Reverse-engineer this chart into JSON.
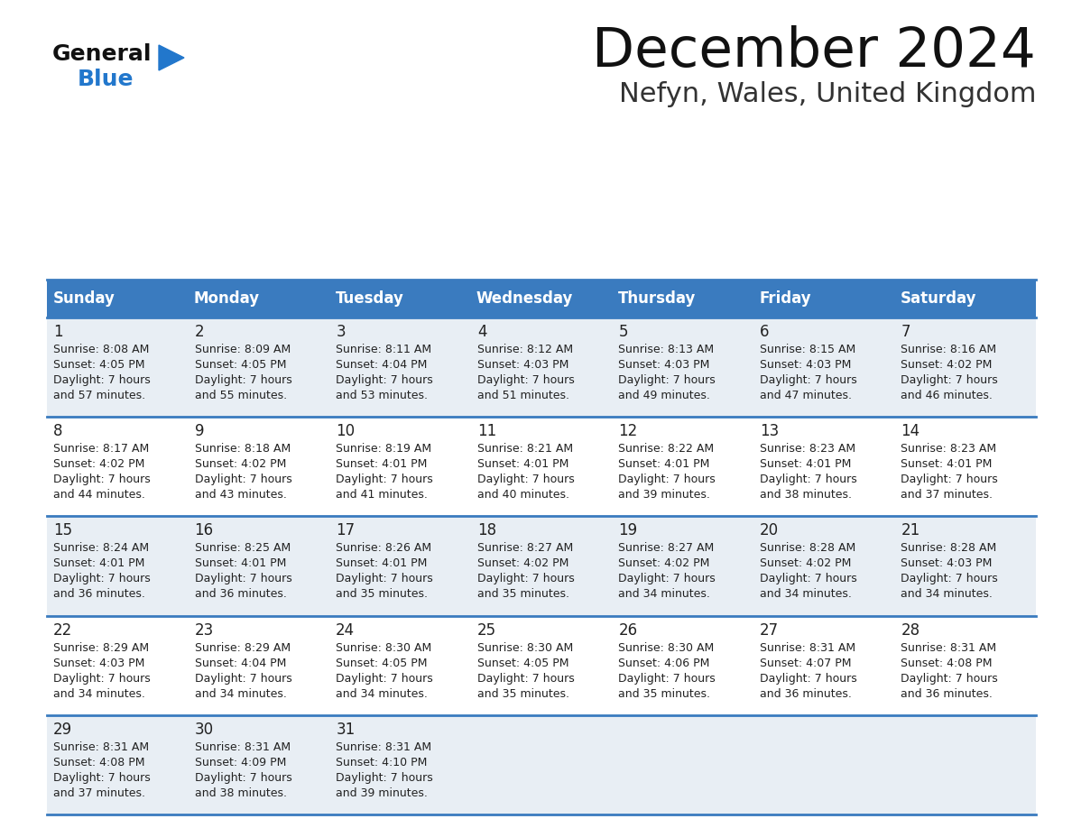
{
  "title": "December 2024",
  "subtitle": "Nefyn, Wales, United Kingdom",
  "header_color": "#3a7bbf",
  "header_text_color": "#ffffff",
  "cell_bg_light": "#e8eef4",
  "cell_bg_white": "#ffffff",
  "border_color": "#3a7bbf",
  "text_color": "#222222",
  "days_of_week": [
    "Sunday",
    "Monday",
    "Tuesday",
    "Wednesday",
    "Thursday",
    "Friday",
    "Saturday"
  ],
  "calendar_data": [
    [
      {
        "day": "1",
        "sunrise": "8:08 AM",
        "sunset": "4:05 PM",
        "daylight_h": "7 hours",
        "daylight_m": "and 57 minutes."
      },
      {
        "day": "2",
        "sunrise": "8:09 AM",
        "sunset": "4:05 PM",
        "daylight_h": "7 hours",
        "daylight_m": "and 55 minutes."
      },
      {
        "day": "3",
        "sunrise": "8:11 AM",
        "sunset": "4:04 PM",
        "daylight_h": "7 hours",
        "daylight_m": "and 53 minutes."
      },
      {
        "day": "4",
        "sunrise": "8:12 AM",
        "sunset": "4:03 PM",
        "daylight_h": "7 hours",
        "daylight_m": "and 51 minutes."
      },
      {
        "day": "5",
        "sunrise": "8:13 AM",
        "sunset": "4:03 PM",
        "daylight_h": "7 hours",
        "daylight_m": "and 49 minutes."
      },
      {
        "day": "6",
        "sunrise": "8:15 AM",
        "sunset": "4:03 PM",
        "daylight_h": "7 hours",
        "daylight_m": "and 47 minutes."
      },
      {
        "day": "7",
        "sunrise": "8:16 AM",
        "sunset": "4:02 PM",
        "daylight_h": "7 hours",
        "daylight_m": "and 46 minutes."
      }
    ],
    [
      {
        "day": "8",
        "sunrise": "8:17 AM",
        "sunset": "4:02 PM",
        "daylight_h": "7 hours",
        "daylight_m": "and 44 minutes."
      },
      {
        "day": "9",
        "sunrise": "8:18 AM",
        "sunset": "4:02 PM",
        "daylight_h": "7 hours",
        "daylight_m": "and 43 minutes."
      },
      {
        "day": "10",
        "sunrise": "8:19 AM",
        "sunset": "4:01 PM",
        "daylight_h": "7 hours",
        "daylight_m": "and 41 minutes."
      },
      {
        "day": "11",
        "sunrise": "8:21 AM",
        "sunset": "4:01 PM",
        "daylight_h": "7 hours",
        "daylight_m": "and 40 minutes."
      },
      {
        "day": "12",
        "sunrise": "8:22 AM",
        "sunset": "4:01 PM",
        "daylight_h": "7 hours",
        "daylight_m": "and 39 minutes."
      },
      {
        "day": "13",
        "sunrise": "8:23 AM",
        "sunset": "4:01 PM",
        "daylight_h": "7 hours",
        "daylight_m": "and 38 minutes."
      },
      {
        "day": "14",
        "sunrise": "8:23 AM",
        "sunset": "4:01 PM",
        "daylight_h": "7 hours",
        "daylight_m": "and 37 minutes."
      }
    ],
    [
      {
        "day": "15",
        "sunrise": "8:24 AM",
        "sunset": "4:01 PM",
        "daylight_h": "7 hours",
        "daylight_m": "and 36 minutes."
      },
      {
        "day": "16",
        "sunrise": "8:25 AM",
        "sunset": "4:01 PM",
        "daylight_h": "7 hours",
        "daylight_m": "and 36 minutes."
      },
      {
        "day": "17",
        "sunrise": "8:26 AM",
        "sunset": "4:01 PM",
        "daylight_h": "7 hours",
        "daylight_m": "and 35 minutes."
      },
      {
        "day": "18",
        "sunrise": "8:27 AM",
        "sunset": "4:02 PM",
        "daylight_h": "7 hours",
        "daylight_m": "and 35 minutes."
      },
      {
        "day": "19",
        "sunrise": "8:27 AM",
        "sunset": "4:02 PM",
        "daylight_h": "7 hours",
        "daylight_m": "and 34 minutes."
      },
      {
        "day": "20",
        "sunrise": "8:28 AM",
        "sunset": "4:02 PM",
        "daylight_h": "7 hours",
        "daylight_m": "and 34 minutes."
      },
      {
        "day": "21",
        "sunrise": "8:28 AM",
        "sunset": "4:03 PM",
        "daylight_h": "7 hours",
        "daylight_m": "and 34 minutes."
      }
    ],
    [
      {
        "day": "22",
        "sunrise": "8:29 AM",
        "sunset": "4:03 PM",
        "daylight_h": "7 hours",
        "daylight_m": "and 34 minutes."
      },
      {
        "day": "23",
        "sunrise": "8:29 AM",
        "sunset": "4:04 PM",
        "daylight_h": "7 hours",
        "daylight_m": "and 34 minutes."
      },
      {
        "day": "24",
        "sunrise": "8:30 AM",
        "sunset": "4:05 PM",
        "daylight_h": "7 hours",
        "daylight_m": "and 34 minutes."
      },
      {
        "day": "25",
        "sunrise": "8:30 AM",
        "sunset": "4:05 PM",
        "daylight_h": "7 hours",
        "daylight_m": "and 35 minutes."
      },
      {
        "day": "26",
        "sunrise": "8:30 AM",
        "sunset": "4:06 PM",
        "daylight_h": "7 hours",
        "daylight_m": "and 35 minutes."
      },
      {
        "day": "27",
        "sunrise": "8:31 AM",
        "sunset": "4:07 PM",
        "daylight_h": "7 hours",
        "daylight_m": "and 36 minutes."
      },
      {
        "day": "28",
        "sunrise": "8:31 AM",
        "sunset": "4:08 PM",
        "daylight_h": "7 hours",
        "daylight_m": "and 36 minutes."
      }
    ],
    [
      {
        "day": "29",
        "sunrise": "8:31 AM",
        "sunset": "4:08 PM",
        "daylight_h": "7 hours",
        "daylight_m": "and 37 minutes."
      },
      {
        "day": "30",
        "sunrise": "8:31 AM",
        "sunset": "4:09 PM",
        "daylight_h": "7 hours",
        "daylight_m": "and 38 minutes."
      },
      {
        "day": "31",
        "sunrise": "8:31 AM",
        "sunset": "4:10 PM",
        "daylight_h": "7 hours",
        "daylight_m": "and 39 minutes."
      },
      null,
      null,
      null,
      null
    ]
  ],
  "logo_color_general": "#111111",
  "logo_color_blue": "#2277cc",
  "logo_triangle_color": "#2277cc"
}
